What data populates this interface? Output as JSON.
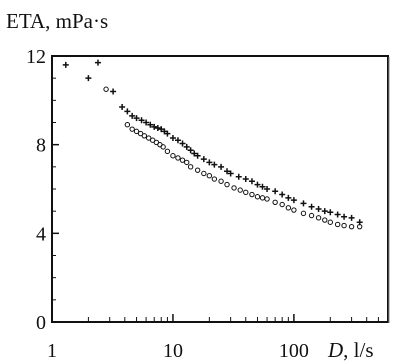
{
  "chart_data": {
    "type": "scatter",
    "title": "",
    "ylabel": "ETA, mPa·s",
    "xlabel_italic": "D",
    "xlabel_unit": ", l/s",
    "x_scale": "log",
    "xlim": [
      1,
      600
    ],
    "ylim": [
      0,
      12
    ],
    "x_ticks": [
      {
        "value": 1,
        "label": "1"
      },
      {
        "value": 10,
        "label": "10"
      },
      {
        "value": 100,
        "label": "100"
      }
    ],
    "y_ticks": [
      {
        "value": 0,
        "label": "0"
      },
      {
        "value": 4,
        "label": "4"
      },
      {
        "value": 8,
        "label": "8"
      },
      {
        "value": 12,
        "label": "12"
      }
    ],
    "grid": false,
    "legend": "none",
    "series": [
      {
        "marker": "plus",
        "x": [
          1.3,
          2.0,
          2.4,
          3.2,
          3.8,
          4.2,
          4.6,
          5.0,
          5.5,
          6.0,
          6.5,
          7.0,
          7.5,
          8.0,
          8.5,
          9.0,
          10,
          11,
          12,
          13,
          14,
          15,
          16,
          18,
          20,
          22,
          25,
          28,
          30,
          35,
          40,
          45,
          50,
          55,
          60,
          70,
          80,
          90,
          100,
          120,
          140,
          160,
          180,
          200,
          230,
          260,
          300,
          350
        ],
        "y": [
          11.6,
          11.0,
          11.7,
          10.4,
          9.7,
          9.5,
          9.3,
          9.2,
          9.1,
          9.0,
          8.9,
          8.8,
          8.75,
          8.7,
          8.6,
          8.5,
          8.3,
          8.2,
          8.05,
          7.9,
          7.75,
          7.6,
          7.5,
          7.35,
          7.2,
          7.1,
          7.0,
          6.8,
          6.7,
          6.55,
          6.45,
          6.35,
          6.2,
          6.1,
          6.0,
          5.9,
          5.75,
          5.6,
          5.5,
          5.35,
          5.2,
          5.1,
          5.0,
          4.95,
          4.85,
          4.75,
          4.7,
          4.5
        ]
      },
      {
        "marker": "circle",
        "x": [
          2.8,
          4.2,
          4.6,
          5.0,
          5.4,
          5.8,
          6.3,
          6.8,
          7.3,
          7.8,
          8.3,
          9.0,
          10,
          11,
          12,
          13,
          14,
          16,
          18,
          20,
          22,
          25,
          28,
          32,
          36,
          40,
          45,
          50,
          55,
          60,
          70,
          80,
          90,
          100,
          120,
          140,
          160,
          180,
          200,
          230,
          260,
          300,
          350
        ],
        "y": [
          10.5,
          8.9,
          8.7,
          8.6,
          8.5,
          8.4,
          8.3,
          8.2,
          8.1,
          8.0,
          7.9,
          7.7,
          7.5,
          7.4,
          7.3,
          7.2,
          7.0,
          6.85,
          6.7,
          6.6,
          6.45,
          6.35,
          6.2,
          6.05,
          5.95,
          5.85,
          5.75,
          5.65,
          5.6,
          5.55,
          5.4,
          5.3,
          5.15,
          5.05,
          4.9,
          4.8,
          4.7,
          4.6,
          4.5,
          4.4,
          4.35,
          4.3,
          4.3
        ]
      }
    ]
  }
}
